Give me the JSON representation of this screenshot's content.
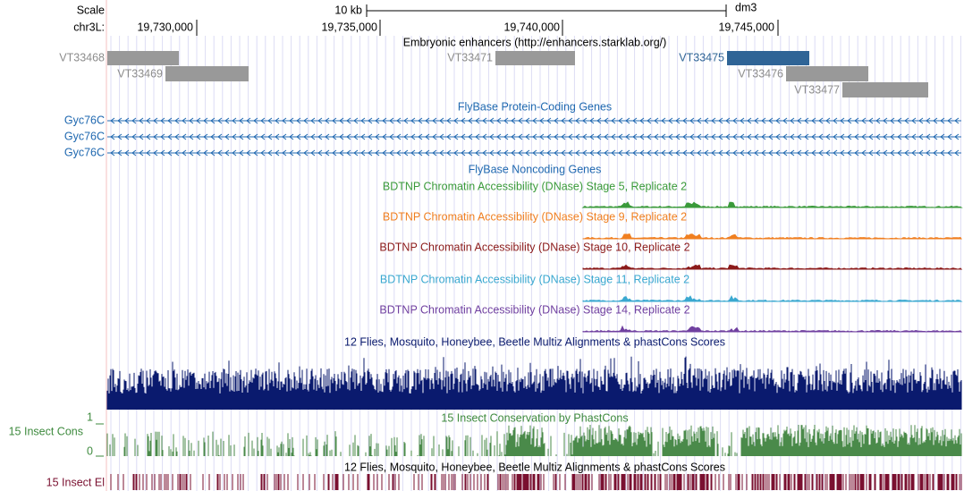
{
  "header": {
    "scale_label": "Scale",
    "scale_bar": "10 kb",
    "assembly": "dm3",
    "chrom": "chr3L:",
    "positions": [
      "19,730,000",
      "19,735,000",
      "19,740,000",
      "19,745,000"
    ]
  },
  "tracks": {
    "enhancers": {
      "title": "Embryonic enhancers (http://enhancers.starklab.org/)",
      "items": [
        "VT33468",
        "VT33469",
        "VT33471",
        "VT33475",
        "VT33476",
        "VT33477"
      ]
    },
    "protein_genes": {
      "title": "FlyBase Protein-Coding Genes",
      "genes": [
        "Gyc76C",
        "Gyc76C",
        "Gyc76C"
      ]
    },
    "noncoding": {
      "title": "FlyBase Noncoding Genes"
    },
    "dnase": [
      "BDTNP Chromatin Accessibility (DNase) Stage 5, Replicate 2",
      "BDTNP Chromatin Accessibility (DNase) Stage 9, Replicate 2",
      "BDTNP Chromatin Accessibility (DNase) Stage 10, Replicate 2",
      "BDTNP Chromatin Accessibility (DNase) Stage 11, Replicate 2",
      "BDTNP Chromatin Accessibility (DNase) Stage 14, Replicate 2"
    ],
    "multiz": {
      "title": "12 Flies, Mosquito, Honeybee, Beetle Multiz Alignments & phastCons Scores"
    },
    "phastcons": {
      "title": "15 Insect Conservation by PhastCons",
      "label": "15 Insect Cons",
      "max": 1,
      "min": 0
    },
    "elements": {
      "title": "12 Flies, Mosquito, Honeybee, Beetle Multiz Alignments & phastCons Scores",
      "label": "15 Insect El"
    }
  }
}
